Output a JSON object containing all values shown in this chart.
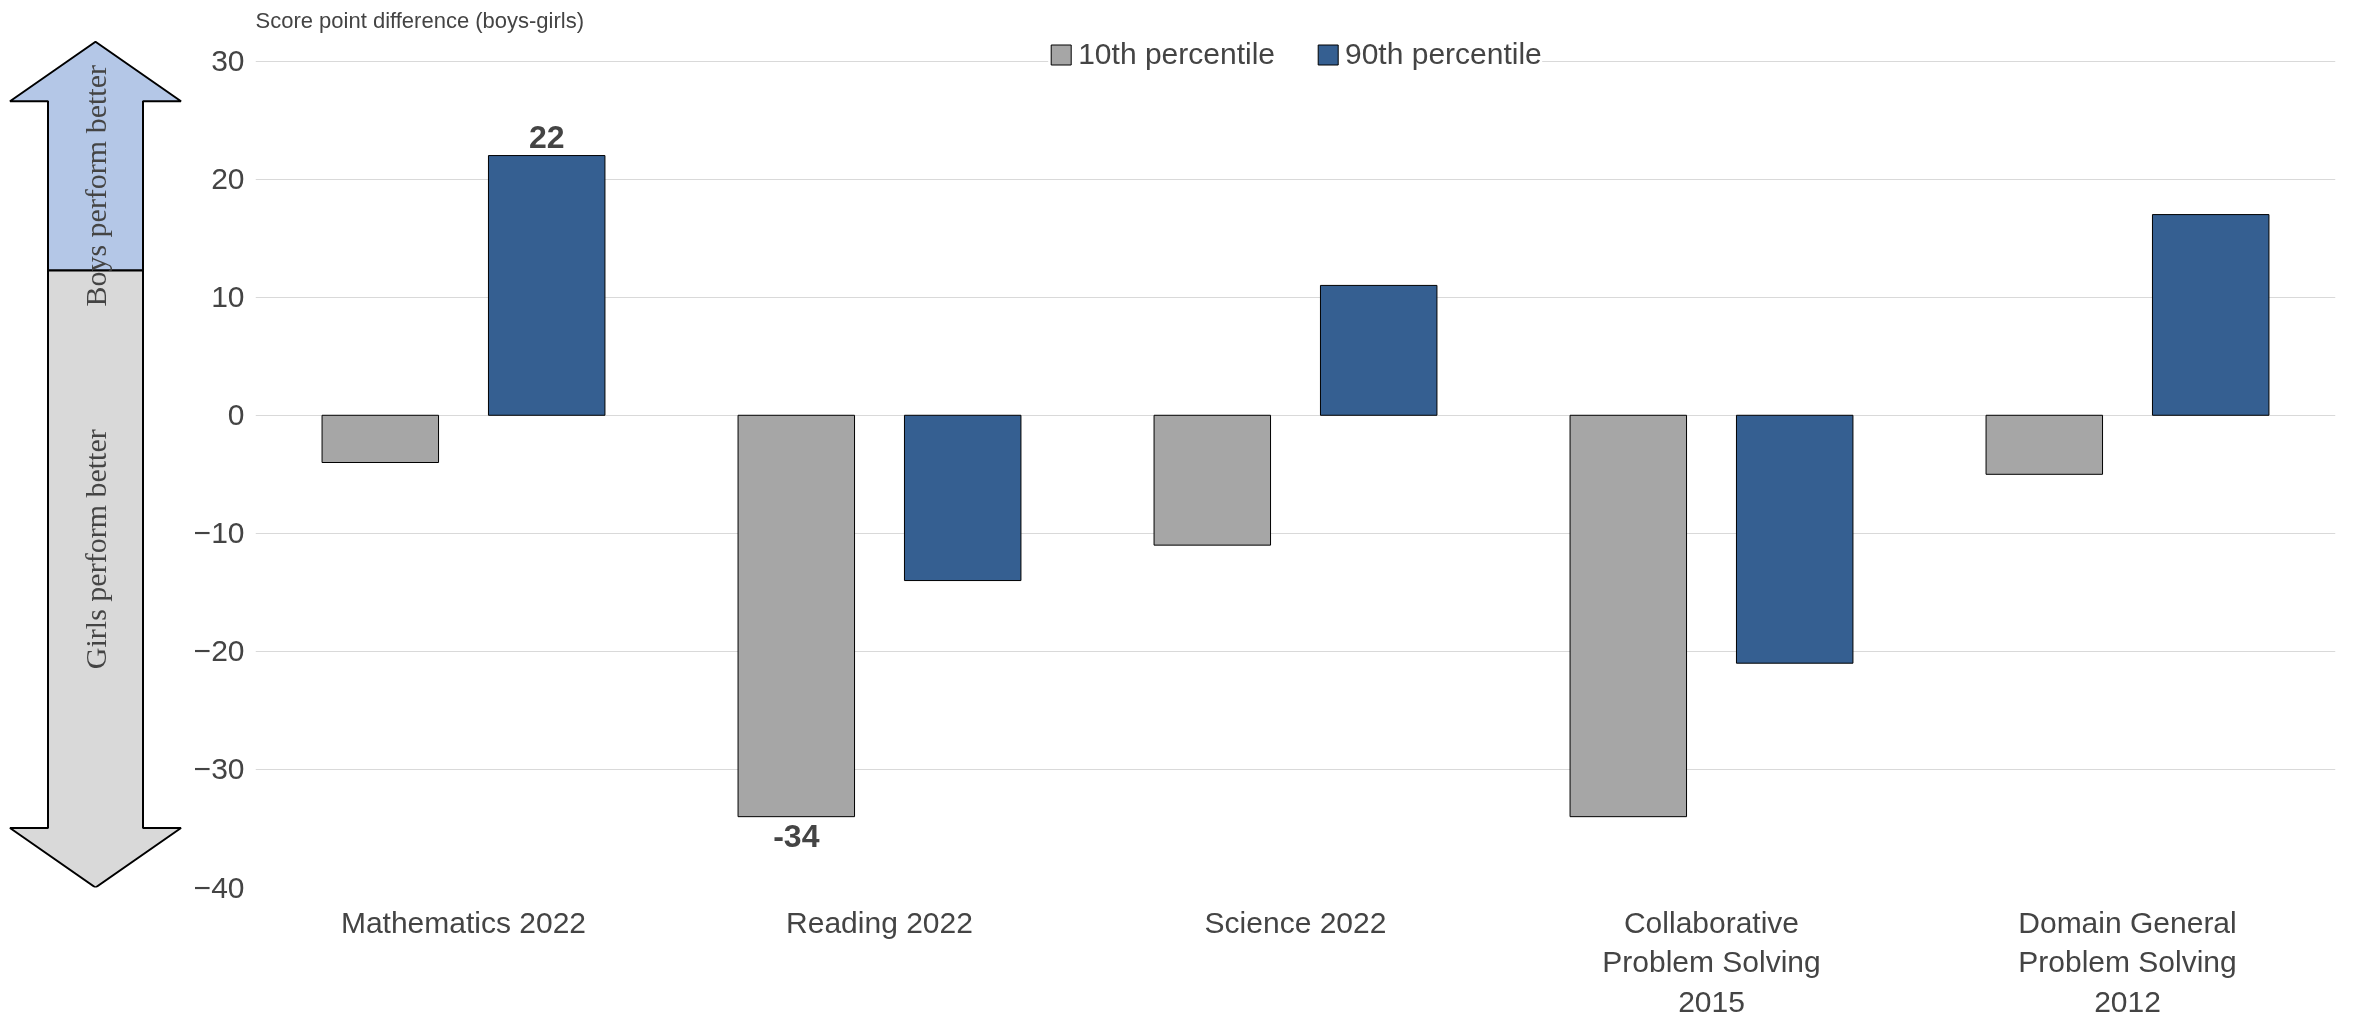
{
  "chart_data": {
    "type": "bar",
    "ylabel": "Score point difference (boys-girls)",
    "categories": [
      "Mathematics 2022",
      "Reading 2022",
      "Science 2022",
      "Collaborative Problem Solving 2015",
      "Domain General Problem Solving 2012"
    ],
    "series": [
      {
        "name": "10th percentile",
        "color": "#a6a6a6",
        "values": [
          -4,
          -34,
          -11,
          -34,
          -5
        ],
        "value_labels": [
          null,
          "-34",
          null,
          null,
          null
        ]
      },
      {
        "name": "90th percentile",
        "color": "#355f91",
        "values": [
          22,
          -14,
          11,
          -21,
          17
        ],
        "value_labels": [
          "22",
          null,
          null,
          null,
          null
        ]
      }
    ],
    "ylim": [
      -40,
      32
    ],
    "yticks": [
      -40,
      -30,
      -20,
      -10,
      0,
      10,
      20,
      30
    ],
    "grid": "y",
    "legend": "top",
    "annotations": [
      "Boys perform better",
      "Girls perform better"
    ]
  }
}
